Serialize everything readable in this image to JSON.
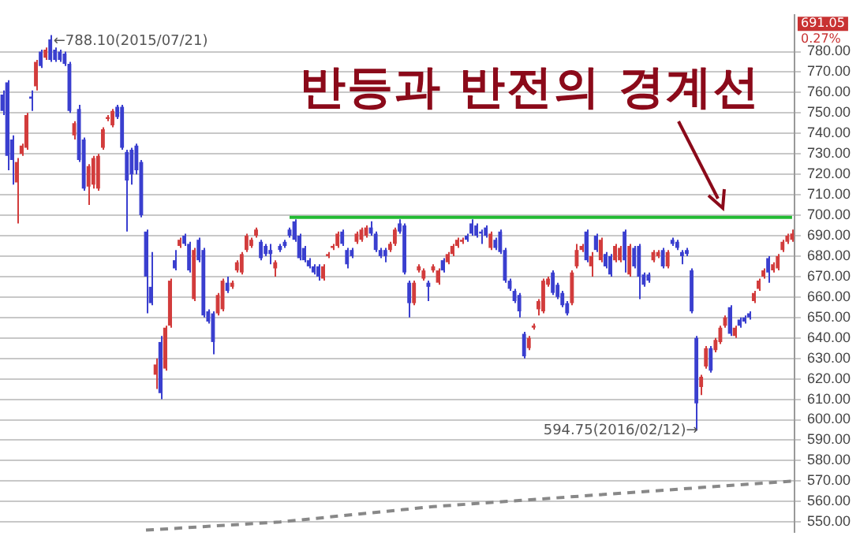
{
  "chart_data": {
    "type": "candlestick",
    "title": "반등과 반전의 경계선",
    "categories": [
      null,
      null,
      null,
      null,
      null,
      null,
      null,
      null,
      null,
      null,
      null,
      null,
      null,
      null,
      null,
      null,
      null,
      null,
      null,
      null,
      null,
      null,
      null,
      null,
      null,
      null,
      null,
      null,
      null,
      null,
      null,
      null,
      null,
      null,
      null,
      null,
      null,
      null,
      null,
      null,
      null,
      null,
      null,
      null,
      null,
      null,
      null,
      null,
      null,
      null,
      null,
      null,
      null,
      null,
      null,
      null,
      null,
      null,
      null,
      null,
      null,
      null,
      null,
      null,
      null,
      null,
      null,
      null,
      null,
      null,
      null,
      null,
      null,
      null,
      null,
      null,
      null,
      null,
      null,
      null,
      null,
      null,
      null,
      null,
      null,
      null,
      null,
      null,
      null,
      null,
      null,
      null,
      null,
      null,
      null,
      null,
      null,
      null,
      null,
      null,
      null,
      null,
      null,
      null,
      null,
      null,
      null,
      null,
      null,
      null,
      null,
      null,
      null,
      null,
      null,
      null,
      null,
      null,
      null,
      null,
      null,
      null,
      null,
      null,
      null,
      null,
      null,
      null,
      null,
      null,
      null,
      null,
      null,
      null,
      null,
      null,
      null,
      null,
      null,
      null,
      null,
      null,
      null,
      null,
      null,
      null,
      null,
      null,
      null,
      null,
      null,
      null,
      null,
      null,
      null,
      null,
      null,
      null,
      null,
      null,
      null,
      null,
      null,
      null,
      null,
      null
    ],
    "ohlc": [
      [
        759,
        761,
        749,
        751
      ],
      [
        765,
        766,
        722,
        729
      ],
      [
        737,
        739,
        715,
        727
      ],
      [
        716,
        728,
        696,
        726
      ],
      [
        730,
        735,
        729,
        734
      ],
      [
        733,
        750,
        732,
        749
      ],
      [
        758,
        761,
        751,
        757
      ],
      [
        763,
        776,
        761,
        775
      ],
      [
        780,
        781,
        772,
        773
      ],
      [
        777,
        782,
        776,
        781
      ],
      [
        786,
        788.1,
        775,
        776
      ],
      [
        781,
        782,
        775,
        776
      ],
      [
        780,
        781,
        775,
        776
      ],
      [
        779,
        780,
        773,
        774
      ],
      [
        774,
        775,
        750,
        751
      ],
      [
        739,
        746,
        737,
        745
      ],
      [
        752,
        754,
        726,
        727
      ],
      [
        737,
        738,
        712,
        713
      ],
      [
        714,
        725,
        705,
        724
      ],
      [
        715,
        729,
        713,
        728
      ],
      [
        713,
        730,
        712,
        729
      ],
      [
        733,
        743,
        732,
        742
      ],
      [
        747,
        749,
        746,
        748
      ],
      [
        744,
        752,
        743,
        751
      ],
      [
        753,
        754,
        747,
        748
      ],
      [
        753,
        754,
        732,
        733
      ],
      [
        731,
        732,
        692,
        717
      ],
      [
        732,
        733,
        715,
        720
      ],
      [
        734,
        735,
        720,
        722
      ],
      [
        726,
        727,
        699,
        700
      ],
      [
        692,
        693,
        652,
        670
      ],
      [
        665,
        682,
        656,
        657
      ],
      [
        622,
        630,
        615,
        627
      ],
      [
        638,
        641,
        610,
        613
      ],
      [
        625,
        646,
        624,
        645
      ],
      [
        646,
        669,
        645,
        668
      ],
      [
        678,
        683,
        673,
        674
      ],
      [
        685,
        689,
        684,
        688
      ],
      [
        690,
        691,
        685,
        686
      ],
      [
        686,
        687,
        672,
        673
      ],
      [
        659,
        684,
        658,
        683
      ],
      [
        688,
        689,
        677,
        678
      ],
      [
        683,
        684,
        650,
        651
      ],
      [
        653,
        654,
        647,
        648
      ],
      [
        652,
        653,
        632,
        638
      ],
      [
        652,
        662,
        651,
        661
      ],
      [
        654,
        669,
        653,
        668
      ],
      [
        667,
        670,
        662,
        663
      ],
      [
        665,
        668,
        664,
        667
      ],
      [
        673,
        678,
        672,
        677
      ],
      [
        672,
        682,
        671,
        681
      ],
      [
        683,
        691,
        682,
        690
      ],
      [
        685,
        689,
        684,
        688
      ],
      [
        690,
        694,
        689,
        693
      ],
      [
        687,
        688,
        678,
        679
      ],
      [
        685,
        686,
        680,
        681
      ],
      [
        683,
        686,
        676,
        681
      ],
      [
        674,
        678,
        670,
        677
      ],
      [
        685,
        686,
        682,
        683
      ],
      [
        687,
        688,
        684,
        685
      ],
      [
        693,
        694,
        689,
        690
      ],
      [
        697,
        698,
        687,
        688
      ],
      [
        690,
        691,
        678,
        679
      ],
      [
        684,
        685,
        677,
        678
      ],
      [
        678,
        679,
        674,
        675
      ],
      [
        675,
        676,
        671,
        672
      ],
      [
        675,
        676,
        668,
        670
      ],
      [
        669,
        676,
        668,
        675
      ],
      [
        680,
        682,
        679,
        681
      ],
      [
        684,
        686,
        683,
        685
      ],
      [
        685,
        692,
        684,
        691
      ],
      [
        692,
        693,
        685,
        686
      ],
      [
        683,
        684,
        674,
        676
      ],
      [
        683,
        684,
        679,
        680
      ],
      [
        687,
        692,
        686,
        691
      ],
      [
        688,
        694,
        687,
        693
      ],
      [
        690,
        695,
        689,
        694
      ],
      [
        694,
        697,
        690,
        691
      ],
      [
        691,
        692,
        682,
        683
      ],
      [
        683,
        684,
        679,
        680
      ],
      [
        683,
        684,
        677,
        680
      ],
      [
        683,
        687,
        682,
        686
      ],
      [
        686,
        694,
        685,
        693
      ],
      [
        696,
        698,
        691,
        692
      ],
      [
        695,
        696,
        671,
        672
      ],
      [
        667,
        668,
        650,
        657
      ],
      [
        657,
        668,
        656,
        667
      ],
      [
        673,
        676,
        672,
        675
      ],
      [
        669,
        674,
        668,
        673
      ],
      [
        667,
        668,
        658,
        665
      ],
      [
        673,
        676,
        672,
        675
      ],
      [
        667,
        674,
        666,
        673
      ],
      [
        678,
        679,
        672,
        673
      ],
      [
        677,
        682,
        676,
        681
      ],
      [
        681,
        686,
        680,
        685
      ],
      [
        685,
        689,
        684,
        688
      ],
      [
        687,
        689,
        686,
        688
      ],
      [
        690,
        691,
        687,
        688
      ],
      [
        696,
        698,
        690,
        691
      ],
      [
        695,
        696,
        689,
        690
      ],
      [
        692,
        693,
        686,
        691
      ],
      [
        694,
        695,
        689,
        690
      ],
      [
        684,
        692,
        683,
        691
      ],
      [
        688,
        689,
        683,
        684
      ],
      [
        692,
        693,
        681,
        682
      ],
      [
        683,
        684,
        667,
        668
      ],
      [
        668,
        669,
        663,
        664
      ],
      [
        663,
        664,
        657,
        658
      ],
      [
        661,
        662,
        650,
        653
      ],
      [
        642,
        643,
        630,
        631
      ],
      [
        635,
        641,
        634,
        640
      ],
      [
        645,
        647,
        644,
        646
      ],
      [
        654,
        659,
        651,
        658
      ],
      [
        653,
        669,
        652,
        668
      ],
      [
        666,
        670,
        665,
        669
      ],
      [
        672,
        673,
        661,
        662
      ],
      [
        666,
        667,
        659,
        660
      ],
      [
        662,
        663,
        655,
        656
      ],
      [
        657,
        658,
        651,
        652
      ],
      [
        657,
        673,
        656,
        672
      ],
      [
        675,
        686,
        674,
        683
      ],
      [
        683,
        686,
        682,
        685
      ],
      [
        692,
        693,
        677,
        678
      ],
      [
        675,
        682,
        670,
        680
      ],
      [
        690,
        691,
        682,
        683
      ],
      [
        678,
        689,
        677,
        688
      ],
      [
        681,
        682,
        674,
        675
      ],
      [
        680,
        681,
        670,
        671
      ],
      [
        678,
        686,
        677,
        685
      ],
      [
        678,
        685,
        677,
        684
      ],
      [
        692,
        693,
        672,
        678
      ],
      [
        671,
        686,
        670,
        685
      ],
      [
        684,
        685,
        674,
        675
      ],
      [
        685,
        686,
        659,
        670
      ],
      [
        671,
        672,
        665,
        666
      ],
      [
        671,
        672,
        667,
        668
      ],
      [
        678,
        683,
        677,
        682
      ],
      [
        680,
        683,
        679,
        682
      ],
      [
        683,
        684,
        674,
        675
      ],
      [
        675,
        683,
        674,
        682
      ],
      [
        688,
        689,
        685,
        686
      ],
      [
        687,
        688,
        683,
        684
      ],
      [
        682,
        683,
        676,
        680
      ],
      [
        683,
        684,
        680,
        681
      ],
      [
        673,
        674,
        652,
        653
      ],
      [
        640,
        641,
        594.75,
        608
      ],
      [
        616,
        622,
        612,
        621
      ],
      [
        626,
        636,
        625,
        635
      ],
      [
        635,
        636,
        623,
        624
      ],
      [
        634,
        640,
        633,
        639
      ],
      [
        638,
        646,
        637,
        645
      ],
      [
        646,
        651,
        645,
        650
      ],
      [
        655,
        656,
        641,
        642
      ],
      [
        641,
        646,
        640,
        645
      ],
      [
        649,
        650,
        645,
        646
      ],
      [
        650,
        651,
        647,
        648
      ],
      [
        652,
        653,
        649,
        650
      ],
      [
        658,
        663,
        657,
        662
      ],
      [
        664,
        669,
        663,
        668
      ],
      [
        670,
        674,
        669,
        673
      ],
      [
        679,
        680,
        667,
        672
      ],
      [
        673,
        677,
        672,
        676
      ],
      [
        674,
        681,
        673,
        680
      ],
      [
        683,
        688,
        682,
        687
      ],
      [
        687,
        691,
        686,
        690
      ],
      [
        688,
        693,
        687,
        691.05
      ]
    ],
    "series": [
      {
        "type": "line",
        "color": "#22bb33",
        "values": [
          null,
          null,
          null,
          null,
          null,
          null,
          null,
          null,
          null,
          null,
          null,
          null,
          null,
          null,
          null,
          null,
          null,
          null,
          null,
          null,
          null,
          null,
          null,
          null,
          null,
          null,
          null,
          null,
          null,
          null,
          null,
          null,
          null,
          null,
          null,
          null,
          null,
          null,
          null,
          null,
          null,
          null,
          null,
          null,
          null,
          null,
          null,
          null,
          null,
          null,
          null,
          null,
          null,
          null,
          null,
          null,
          null,
          null,
          null,
          null,
          699,
          null,
          null,
          null,
          null,
          null,
          null,
          null,
          null,
          null,
          null,
          null,
          null,
          null,
          null,
          null,
          null,
          null,
          null,
          null,
          null,
          null,
          null,
          null,
          null,
          null,
          null,
          null,
          null,
          null,
          null,
          null,
          null,
          null,
          null,
          null,
          null,
          null,
          null,
          null,
          null,
          null,
          null,
          null,
          null,
          null,
          null,
          null,
          null,
          null,
          null,
          null,
          null,
          null,
          null,
          null,
          null,
          null,
          null,
          null,
          null,
          null,
          null,
          null,
          null,
          null,
          null,
          null,
          null,
          null,
          null,
          null,
          null,
          null,
          null,
          null,
          null,
          null,
          null,
          null,
          null,
          null,
          null,
          null,
          null,
          null,
          null,
          null,
          null,
          null,
          null,
          null,
          null,
          null,
          null,
          null,
          null,
          null,
          null,
          null,
          null,
          null,
          null,
          null,
          null,
          699
        ]
      },
      {
        "type": "line",
        "color": "#888888",
        "line_style": "dashed",
        "values": [
          null,
          null,
          null,
          null,
          null,
          null,
          null,
          null,
          null,
          null,
          null,
          null,
          null,
          null,
          null,
          null,
          null,
          null,
          null,
          null,
          null,
          null,
          null,
          null,
          null,
          null,
          null,
          null,
          null,
          null,
          546,
          null,
          null,
          null,
          null,
          null,
          null,
          null,
          null,
          null,
          null,
          null,
          null,
          null,
          null,
          null,
          null,
          null,
          null,
          null,
          null,
          null,
          null,
          null,
          null,
          null,
          null,
          null,
          550,
          null,
          null,
          null,
          null,
          null,
          null,
          null,
          null,
          null,
          null,
          null,
          null,
          null,
          null,
          null,
          null,
          null,
          null,
          null,
          null,
          null,
          null,
          null,
          null,
          null,
          null,
          null,
          null,
          null,
          null,
          null,
          557.5,
          null,
          null,
          null,
          null,
          null,
          null,
          null,
          null,
          null,
          null,
          null,
          null,
          null,
          null,
          null,
          null,
          null,
          null,
          null,
          null,
          null,
          null,
          null,
          null,
          null,
          null,
          null,
          null,
          null,
          null,
          null,
          null,
          null,
          null,
          null,
          null,
          null,
          null,
          null,
          null,
          null,
          null,
          null,
          null,
          null,
          null,
          null,
          null,
          null,
          null,
          null,
          null,
          null,
          null,
          null,
          null,
          null,
          null,
          null,
          null,
          null,
          null,
          null,
          null,
          null,
          null,
          null,
          null,
          null,
          null,
          null,
          null,
          null,
          null,
          570
        ]
      }
    ],
    "ylim": [
      545,
      798
    ],
    "yticks": [
      {
        "value": 550,
        "label": "550.00"
      },
      {
        "value": 560,
        "label": "560.00"
      },
      {
        "value": 570,
        "label": "570.00"
      },
      {
        "value": 580,
        "label": "580.00"
      },
      {
        "value": 590,
        "label": "590.00"
      },
      {
        "value": 600,
        "label": "600.00"
      },
      {
        "value": 610,
        "label": "610.00"
      },
      {
        "value": 620,
        "label": "620.00"
      },
      {
        "value": 630,
        "label": "630.00"
      },
      {
        "value": 640,
        "label": "640.00"
      },
      {
        "value": 650,
        "label": "650.00"
      },
      {
        "value": 660,
        "label": "660.00"
      },
      {
        "value": 670,
        "label": "670.00"
      },
      {
        "value": 680,
        "label": "680.00"
      },
      {
        "value": 690,
        "label": "690.00"
      },
      {
        "value": 700,
        "label": "700.00"
      },
      {
        "value": 710,
        "label": "710.00"
      },
      {
        "value": 720,
        "label": "720.00"
      },
      {
        "value": 730,
        "label": "730.00"
      },
      {
        "value": 740,
        "label": "740.00"
      },
      {
        "value": 750,
        "label": "750.00"
      },
      {
        "value": 760,
        "label": "760.00"
      },
      {
        "value": 770,
        "label": "770.00"
      },
      {
        "value": 780,
        "label": "780.00"
      }
    ],
    "grid": "y",
    "tick_labels": "y",
    "legend": false,
    "annotations": [
      "←788.10(2015/07/21)",
      "594.75(2016/02/12)→",
      "691.05",
      "0.27%"
    ]
  }
}
